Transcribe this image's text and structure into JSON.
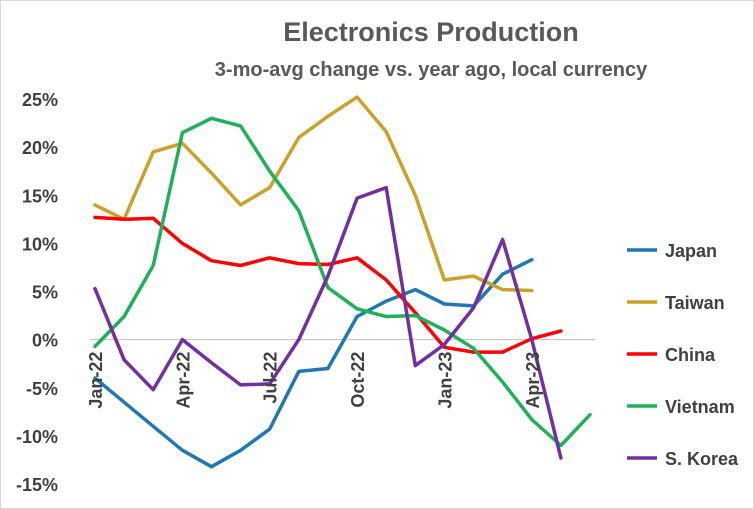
{
  "chart_data": {
    "type": "line",
    "title": "Electronics Production",
    "subtitle": "3-mo-avg change vs. year ago, local currency",
    "xlabel": "",
    "ylabel": "",
    "x": [
      "Jan-22",
      "Feb-22",
      "Mar-22",
      "Apr-22",
      "May-22",
      "Jun-22",
      "Jul-22",
      "Aug-22",
      "Sep-22",
      "Oct-22",
      "Nov-22",
      "Dec-22",
      "Jan-23",
      "Feb-23",
      "Mar-23",
      "Apr-23",
      "May-23",
      "Jun-23"
    ],
    "x_tick_labels": [
      {
        "label": "Jan-22",
        "index": 0
      },
      {
        "label": "Apr-22",
        "index": 3
      },
      {
        "label": "Jul-22",
        "index": 6
      },
      {
        "label": "Oct-22",
        "index": 9
      },
      {
        "label": "Jan-23",
        "index": 12
      },
      {
        "label": "Apr-23",
        "index": 15
      }
    ],
    "ylim": [
      -15,
      25
    ],
    "y_ticks": [
      -15,
      -10,
      -5,
      0,
      5,
      10,
      15,
      20,
      25
    ],
    "y_tick_format": "percent",
    "grid": false,
    "legend_position": "right",
    "series": [
      {
        "name": "Japan",
        "color": "#1f77b4",
        "values": [
          -4.0,
          -6.5,
          -9.0,
          -11.5,
          -13.2,
          -11.5,
          -9.3,
          -3.3,
          -3.0,
          2.4,
          4.0,
          5.2,
          3.7,
          3.5,
          6.8,
          8.3,
          null,
          null
        ]
      },
      {
        "name": "Taiwan",
        "color": "#c9a227",
        "values": [
          14.0,
          12.5,
          19.5,
          20.4,
          17.3,
          14.0,
          15.8,
          21.0,
          23.2,
          25.2,
          21.6,
          15.0,
          6.2,
          6.6,
          5.2,
          5.1,
          null,
          null
        ]
      },
      {
        "name": "China",
        "color": "#ff0000",
        "values": [
          12.7,
          12.5,
          12.6,
          10.0,
          8.2,
          7.7,
          8.5,
          7.9,
          7.8,
          8.5,
          6.2,
          2.8,
          -0.8,
          -1.3,
          -1.3,
          0.1,
          0.9,
          null
        ]
      },
      {
        "name": "Vietnam",
        "color": "#1eb15a",
        "values": [
          -0.7,
          2.4,
          7.7,
          21.5,
          23.0,
          22.2,
          17.5,
          13.4,
          5.4,
          3.2,
          2.4,
          2.5,
          1.0,
          -0.9,
          -4.4,
          -8.3,
          -11.0,
          -7.8
        ]
      },
      {
        "name": "S. Korea",
        "color": "#7030a0",
        "values": [
          5.3,
          -2.1,
          -5.2,
          0.0,
          -2.4,
          -4.7,
          -4.6,
          0.0,
          6.6,
          14.7,
          15.8,
          -2.7,
          -0.5,
          3.3,
          10.4,
          0.0,
          -12.3,
          null
        ]
      }
    ]
  }
}
